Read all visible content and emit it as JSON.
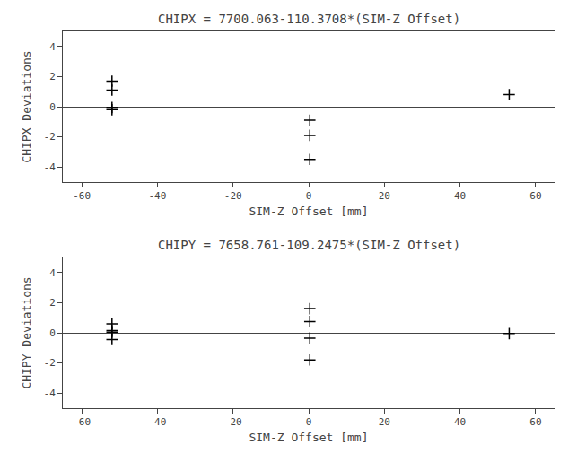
{
  "chart_data": [
    {
      "type": "scatter",
      "title": "CHIPX = 7700.063-110.3708*(SIM-Z Offset)",
      "x_label": "SIM-Z Offset [mm]",
      "y_label": "CHIPX Deviations",
      "x": [
        -52,
        -52,
        -52,
        -52,
        0.3,
        0.3,
        0.3,
        53
      ],
      "values": [
        1.7,
        1.1,
        -0.05,
        -0.2,
        -0.9,
        -1.9,
        -3.5,
        0.8
      ],
      "color": "black",
      "marker": "plus",
      "xlim": [
        -65,
        65
      ],
      "ylim": [
        -5,
        5
      ],
      "xticks": [
        -60,
        -40,
        -20,
        0,
        20,
        40,
        60
      ],
      "yticks": [
        -4,
        -2,
        0,
        2,
        4
      ],
      "grid": false
    },
    {
      "type": "scatter",
      "title": "CHIPY = 7658.761-109.2475*(SIM-Z Offset)",
      "x_label": "SIM-Z Offset [mm]",
      "y_label": "CHIPY Deviations",
      "x": [
        -52,
        -52,
        -52,
        -52,
        0.3,
        0.3,
        0.3,
        0.3,
        53
      ],
      "values": [
        0.6,
        0.15,
        0.05,
        -0.45,
        1.6,
        0.75,
        -0.35,
        -1.8,
        -0.05
      ],
      "color": "black",
      "marker": "plus",
      "xlim": [
        -65,
        65
      ],
      "ylim": [
        -5,
        5
      ],
      "xticks": [
        -60,
        -40,
        -20,
        0,
        20,
        40,
        60
      ],
      "yticks": [
        -4,
        -2,
        0,
        2,
        4
      ],
      "grid": false
    }
  ]
}
